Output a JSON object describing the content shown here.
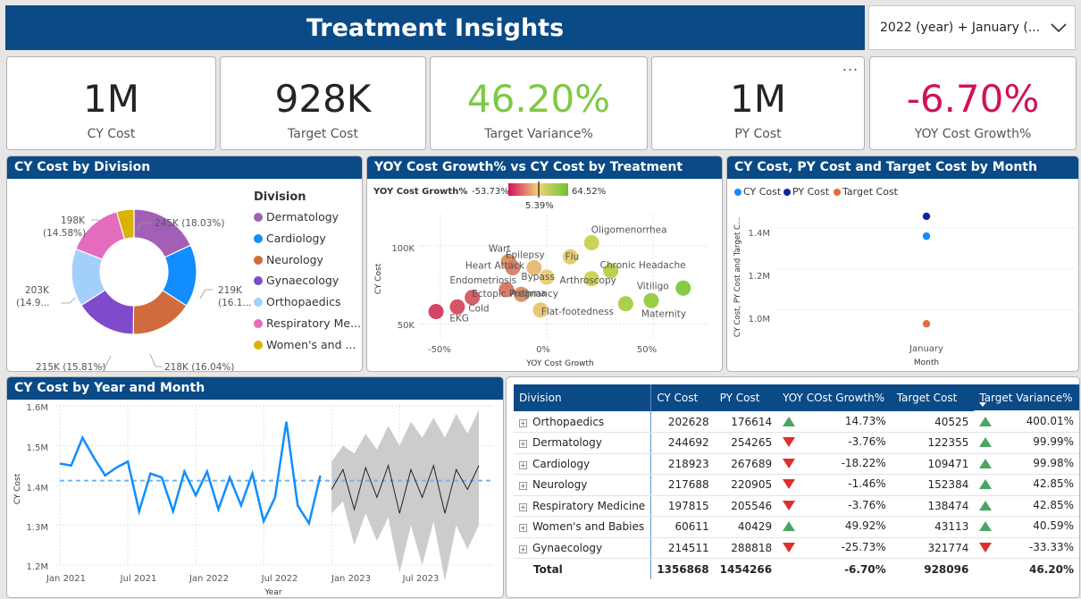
{
  "header": {
    "title": "Treatment Insights"
  },
  "slicer": {
    "value": "2022 (year) + January (..."
  },
  "kpis": [
    {
      "value": "1M",
      "label": "CY Cost",
      "color": "#252423"
    },
    {
      "value": "928K",
      "label": "Target Cost",
      "color": "#252423"
    },
    {
      "value": "46.20%",
      "label": "Target Variance%",
      "color": "#7ec944"
    },
    {
      "value": "1M",
      "label": "PY Cost",
      "color": "#252423"
    },
    {
      "value": "-6.70%",
      "label": "YOY Cost Growth%",
      "color": "#d0125a"
    }
  ],
  "more_options": "...",
  "donut": {
    "title": "CY Cost by Division",
    "legend_title": "Division",
    "chart_data": {
      "type": "pie",
      "categories": [
        "Dermatology",
        "Cardiology",
        "Neurology",
        "Gynaecology",
        "Orthopaedics",
        "Respiratory Me...",
        "Women's and ..."
      ],
      "values": [
        245,
        219,
        218,
        215,
        203,
        198,
        61
      ],
      "colors": [
        "#a35fb5",
        "#118dff",
        "#cf6b3c",
        "#7f4bcc",
        "#a3d0fb",
        "#e36cbf",
        "#d9b300"
      ]
    },
    "labels": {
      "l1": "245K (18.03%)",
      "l2a": "219K",
      "l2b": "(16.1...",
      "l3": "218K (16.04%)",
      "l4": "215K (15.81%)",
      "l5a": "203K",
      "l5b": "(14.9...",
      "l6a": "198K",
      "l6b": "(14.58%)"
    }
  },
  "scatter": {
    "title": "YOY Cost Growth% vs CY Cost by Treatment",
    "grad_label": "YOY Cost Growth%",
    "grad_min": "-53.73%",
    "grad_max": "64.52%",
    "grad_mid": "5.39%",
    "xlabel": "YOY Cost Growth",
    "ylabel": "CY Cost",
    "x_ticks": [
      "-50%",
      "0%",
      "50%"
    ],
    "y_ticks": [
      "100K",
      "50K"
    ],
    "chart_data": {
      "type": "scatter",
      "xlim": [
        -0.6,
        0.75
      ],
      "ylim": [
        40,
        120
      ],
      "points": [
        {
          "name": "Oligomenorrhea",
          "x": 0.21,
          "y": 102,
          "color": "#c7d14e"
        },
        {
          "name": "Wart",
          "x": -0.18,
          "y": 90,
          "color": "#dd8d5c"
        },
        {
          "name": "Flu",
          "x": 0.11,
          "y": 93,
          "color": "#e4cb66"
        },
        {
          "name": "Heart Attack",
          "x": -0.16,
          "y": 86,
          "color": "#d77c62"
        },
        {
          "name": "Epilepsy",
          "x": -0.06,
          "y": 86,
          "color": "#e5b870"
        },
        {
          "name": "Chronic Headache",
          "x": 0.3,
          "y": 84,
          "color": "#b5cf46"
        },
        {
          "name": "Bypass",
          "x": 0.0,
          "y": 80,
          "color": "#e8cc72"
        },
        {
          "name": "Arthroscopy",
          "x": 0.21,
          "y": 79,
          "color": "#c9d14c"
        },
        {
          "name": "Vitiligo",
          "x": 0.64,
          "y": 73,
          "color": "#7ec63a"
        },
        {
          "name": "Endometriosis",
          "x": -0.19,
          "y": 72,
          "color": "#d9745f"
        },
        {
          "name": "Asthma",
          "x": -0.12,
          "y": 69,
          "color": "#dc8c63"
        },
        {
          "name": "Ectopic Pregnancy",
          "x": -0.35,
          "y": 67,
          "color": "#d45660"
        },
        {
          "name": "Maternity",
          "x": 0.49,
          "y": 65,
          "color": "#95c93d"
        },
        {
          "name": "Flat-footedness",
          "x": 0.37,
          "y": 63,
          "color": "#a7cd40"
        },
        {
          "name": "EKG",
          "x": -0.52,
          "y": 58,
          "color": "#d23a5c"
        },
        {
          "name": "Cold",
          "x": -0.42,
          "y": 61,
          "color": "#d44c5d"
        },
        {
          "name": "",
          "x": -0.03,
          "y": 59,
          "color": "#e8c46e"
        }
      ]
    }
  },
  "bymonth": {
    "title": "CY Cost, PY Cost and Target Cost by Month",
    "legend": [
      {
        "name": "CY Cost",
        "color": "#118dff"
      },
      {
        "name": "PY Cost",
        "color": "#12239e"
      },
      {
        "name": "Target Cost",
        "color": "#e66c37"
      }
    ],
    "ylabel": "CY Cost, PY Cost and Target C...",
    "xlabel": "Month",
    "y_ticks": [
      "1.4M",
      "1.2M",
      "1.0M"
    ],
    "chart_data": {
      "type": "scatter",
      "categories": [
        "January"
      ],
      "ylim": [
        0.85,
        1.55
      ],
      "series": [
        {
          "name": "CY Cost",
          "values": [
            1.357
          ]
        },
        {
          "name": "PY Cost",
          "values": [
            1.454
          ]
        },
        {
          "name": "Target Cost",
          "values": [
            0.928
          ]
        }
      ]
    }
  },
  "trend": {
    "title": "CY Cost by Year and Month",
    "ylabel": "CY Cost",
    "xlabel": "Year",
    "x_ticks": [
      "Jan 2021",
      "Jul 2021",
      "Jan 2022",
      "Jul 2022",
      "Jan 2023",
      "Jul 2023"
    ],
    "y_ticks": [
      "1.6M",
      "1.5M",
      "1.4M",
      "1.3M",
      "1.2M"
    ],
    "chart_data": {
      "type": "line",
      "ylim": [
        1.2,
        1.6
      ],
      "actual": [
        1.455,
        1.45,
        1.52,
        1.47,
        1.425,
        1.445,
        1.46,
        1.335,
        1.43,
        1.42,
        1.335,
        1.435,
        1.375,
        1.435,
        1.34,
        1.42,
        1.35,
        1.43,
        1.31,
        1.37,
        1.56,
        1.35,
        1.305,
        1.425
      ],
      "forecast": [
        1.39,
        1.44,
        1.34,
        1.445,
        1.37,
        1.45,
        1.33,
        1.44,
        1.37,
        1.45,
        1.33,
        1.44,
        1.39,
        1.45
      ],
      "forecast_upper": [
        1.46,
        1.5,
        1.48,
        1.53,
        1.49,
        1.55,
        1.5,
        1.56,
        1.52,
        1.57,
        1.52,
        1.58,
        1.53,
        1.59
      ],
      "forecast_lower": [
        1.33,
        1.36,
        1.25,
        1.33,
        1.26,
        1.32,
        1.18,
        1.3,
        1.2,
        1.31,
        1.16,
        1.3,
        1.24,
        1.3
      ],
      "average": 1.412
    }
  },
  "table": {
    "columns": [
      "Division",
      "CY Cost",
      "PY Cost",
      "YOY COst Growth%",
      "Target Cost",
      "Target Variance%"
    ],
    "rows": [
      {
        "division": "Orthopaedics",
        "cy": "202628",
        "py": "176614",
        "yoy_dir": "up",
        "yoy": "14.73%",
        "target": "40525",
        "tv_dir": "up",
        "tv": "400.01%"
      },
      {
        "division": "Dermatology",
        "cy": "244692",
        "py": "254265",
        "yoy_dir": "down",
        "yoy": "-3.76%",
        "target": "122355",
        "tv_dir": "up",
        "tv": "99.99%"
      },
      {
        "division": "Cardiology",
        "cy": "218923",
        "py": "267689",
        "yoy_dir": "down",
        "yoy": "-18.22%",
        "target": "109471",
        "tv_dir": "up",
        "tv": "99.98%"
      },
      {
        "division": "Neurology",
        "cy": "217688",
        "py": "220905",
        "yoy_dir": "down",
        "yoy": "-1.46%",
        "target": "152384",
        "tv_dir": "up",
        "tv": "42.85%"
      },
      {
        "division": "Respiratory Medicine",
        "cy": "197815",
        "py": "205546",
        "yoy_dir": "down",
        "yoy": "-3.76%",
        "target": "138474",
        "tv_dir": "up",
        "tv": "42.85%"
      },
      {
        "division": "Women's and Babies",
        "cy": "60611",
        "py": "40429",
        "yoy_dir": "up",
        "yoy": "49.92%",
        "target": "43113",
        "tv_dir": "up",
        "tv": "40.59%"
      },
      {
        "division": "Gynaecology",
        "cy": "214511",
        "py": "288818",
        "yoy_dir": "down",
        "yoy": "-25.73%",
        "target": "321774",
        "tv_dir": "down",
        "tv": "-33.33%"
      }
    ],
    "total": {
      "label": "Total",
      "cy": "1356868",
      "py": "1454266",
      "yoy": "-6.70%",
      "target": "928096",
      "tv": "46.20%"
    }
  }
}
